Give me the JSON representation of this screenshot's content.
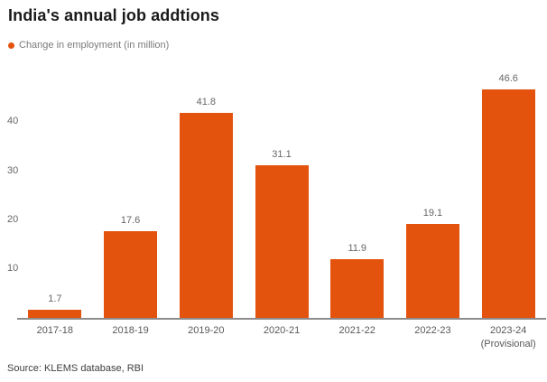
{
  "header": {
    "title": "India's annual job addtions"
  },
  "legend": {
    "label": "Change in employment (in million)"
  },
  "chart_data": {
    "type": "bar",
    "title": "India's annual job addtions",
    "series_name": "Change in employment (in million)",
    "categories": [
      "2017-18",
      "2018-19",
      "2019-20",
      "2020-21",
      "2021-22",
      "2022-23",
      "2023-24\n(Provisional)"
    ],
    "values": [
      1.7,
      17.6,
      41.8,
      31.1,
      11.9,
      19.1,
      46.6
    ],
    "value_labels": [
      "1.7",
      "17.6",
      "41.8",
      "31.1",
      "11.9",
      "19.1",
      "46.6"
    ],
    "xlabel": "",
    "ylabel": "",
    "yticks": [
      10,
      20,
      30,
      40
    ],
    "ylim": [
      0,
      51
    ],
    "grid": false,
    "legend_position": "top-left"
  },
  "colors": {
    "bar": "#e4530e",
    "legend_dot": "#e4530e",
    "axis_line": "#8c8c8c",
    "title_text": "#1a1a1a",
    "legend_text": "#7b7b7b",
    "tick_text": "#666666",
    "background": "#ffffff"
  },
  "source": {
    "text": "Source: KLEMS database, RBI"
  }
}
